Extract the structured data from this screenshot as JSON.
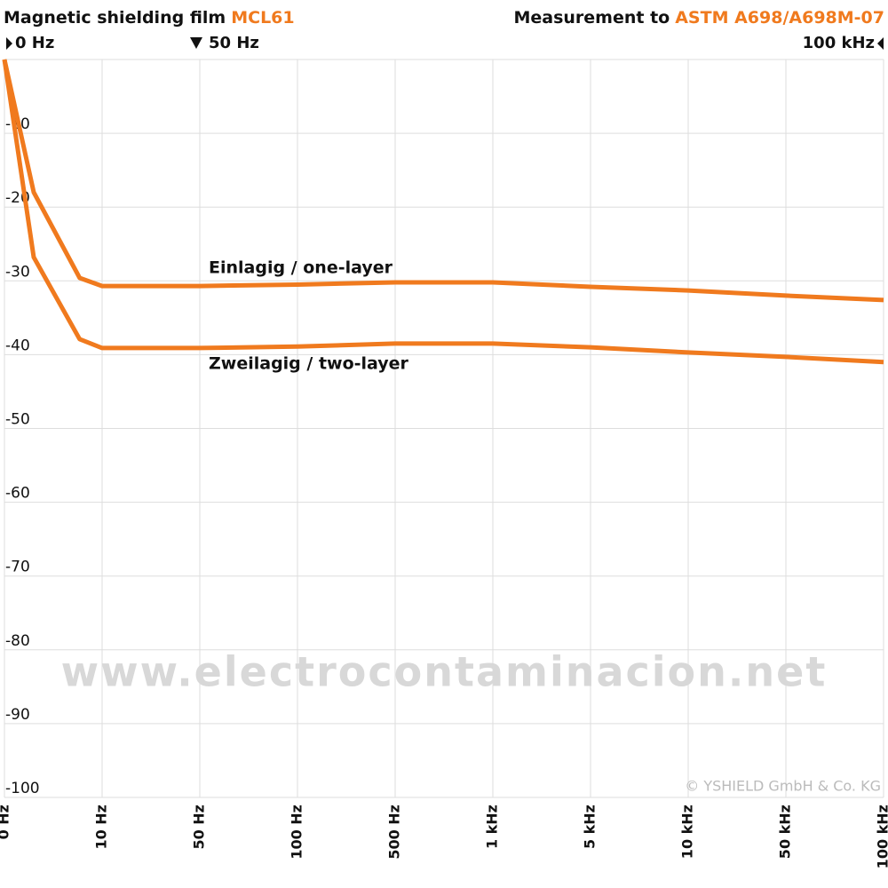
{
  "chart_data": {
    "type": "line",
    "title": "Magnetic shielding film",
    "product": "MCL61",
    "standard_text": "Measurement to",
    "standard": "ASTM A698/A698M-07",
    "markers": [
      "0 Hz",
      "50 Hz",
      "100 kHz"
    ],
    "watermark": "www.electrocontaminacion.net",
    "copyright": "© YSHIELD GmbH & Co. KG",
    "categories": [
      "0 Hz",
      null,
      null,
      "10 Hz",
      "50 Hz",
      "100 Hz",
      "500 Hz",
      "1 kHz",
      "5 kHz",
      "10 kHz",
      "50 kHz",
      "100 kHz"
    ],
    "series": [
      {
        "name": "Einlagig / one-layer",
        "color": "#f07a1e",
        "values": [
          0,
          -18,
          -29.6,
          -30.7,
          -30.7,
          -30.5,
          -30.2,
          -30.2,
          -30.8,
          -31.3,
          -32,
          -32.6
        ]
      },
      {
        "name": "Zweilagig / two-layer",
        "color": "#f07a1e",
        "values": [
          0,
          -26.8,
          -37.9,
          -39.1,
          -39.1,
          -38.9,
          -38.5,
          -38.5,
          -39,
          -39.7,
          -40.3,
          -41
        ]
      }
    ],
    "ylim": [
      -100,
      0
    ],
    "yticks": [
      -10,
      -20,
      -30,
      -40,
      -50,
      -60,
      -70,
      -80,
      -90,
      -100
    ],
    "grid": true
  }
}
